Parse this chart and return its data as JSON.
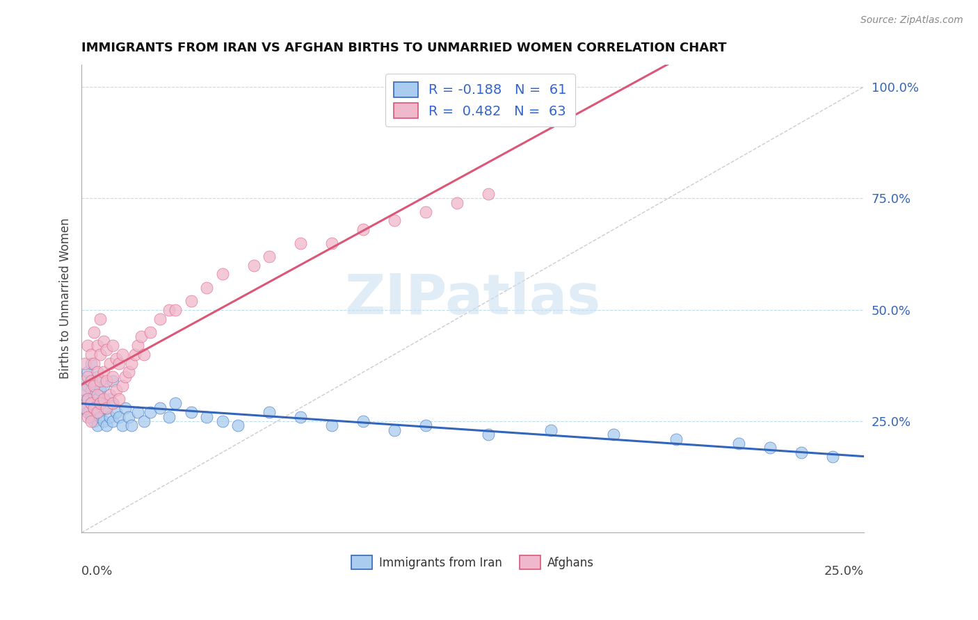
{
  "title": "IMMIGRANTS FROM IRAN VS AFGHAN BIRTHS TO UNMARRIED WOMEN CORRELATION CHART",
  "source": "Source: ZipAtlas.com",
  "legend_label1": "Immigrants from Iran",
  "legend_label2": "Afghans",
  "color_iran": "#aaccee",
  "color_afghan": "#f0b8cc",
  "color_iran_line": "#3366bb",
  "color_afghan_line": "#dd5577",
  "color_ref_line": "#cccccc",
  "color_grid": "#bbddee",
  "watermark_color": "#cce0f0",
  "ytick_values": [
    0.25,
    0.5,
    0.75,
    1.0
  ],
  "xmin": 0.0,
  "xmax": 0.25,
  "ymin": 0.0,
  "ymax": 1.05,
  "iran_x": [
    0.001,
    0.001,
    0.001,
    0.002,
    0.002,
    0.002,
    0.002,
    0.003,
    0.003,
    0.003,
    0.003,
    0.004,
    0.004,
    0.004,
    0.005,
    0.005,
    0.005,
    0.005,
    0.006,
    0.006,
    0.006,
    0.007,
    0.007,
    0.007,
    0.008,
    0.008,
    0.009,
    0.009,
    0.01,
    0.01,
    0.01,
    0.011,
    0.012,
    0.013,
    0.014,
    0.015,
    0.016,
    0.018,
    0.02,
    0.022,
    0.025,
    0.028,
    0.03,
    0.035,
    0.04,
    0.045,
    0.05,
    0.06,
    0.07,
    0.08,
    0.09,
    0.1,
    0.11,
    0.13,
    0.15,
    0.17,
    0.19,
    0.21,
    0.22,
    0.23,
    0.24
  ],
  "iran_y": [
    0.28,
    0.31,
    0.34,
    0.27,
    0.3,
    0.33,
    0.36,
    0.26,
    0.29,
    0.32,
    0.38,
    0.25,
    0.28,
    0.31,
    0.24,
    0.27,
    0.3,
    0.35,
    0.26,
    0.29,
    0.32,
    0.25,
    0.28,
    0.33,
    0.24,
    0.28,
    0.26,
    0.3,
    0.25,
    0.29,
    0.34,
    0.27,
    0.26,
    0.24,
    0.28,
    0.26,
    0.24,
    0.27,
    0.25,
    0.27,
    0.28,
    0.26,
    0.29,
    0.27,
    0.26,
    0.25,
    0.24,
    0.27,
    0.26,
    0.24,
    0.25,
    0.23,
    0.24,
    0.22,
    0.23,
    0.22,
    0.21,
    0.2,
    0.19,
    0.18,
    0.17
  ],
  "afghan_x": [
    0.001,
    0.001,
    0.001,
    0.002,
    0.002,
    0.002,
    0.002,
    0.003,
    0.003,
    0.003,
    0.003,
    0.004,
    0.004,
    0.004,
    0.004,
    0.005,
    0.005,
    0.005,
    0.005,
    0.006,
    0.006,
    0.006,
    0.006,
    0.007,
    0.007,
    0.007,
    0.008,
    0.008,
    0.008,
    0.009,
    0.009,
    0.01,
    0.01,
    0.01,
    0.011,
    0.011,
    0.012,
    0.012,
    0.013,
    0.013,
    0.014,
    0.015,
    0.016,
    0.017,
    0.018,
    0.019,
    0.02,
    0.022,
    0.025,
    0.028,
    0.03,
    0.035,
    0.04,
    0.045,
    0.055,
    0.06,
    0.07,
    0.08,
    0.09,
    0.1,
    0.11,
    0.12,
    0.13
  ],
  "afghan_y": [
    0.28,
    0.32,
    0.38,
    0.26,
    0.3,
    0.35,
    0.42,
    0.25,
    0.29,
    0.34,
    0.4,
    0.28,
    0.33,
    0.38,
    0.45,
    0.27,
    0.31,
    0.36,
    0.42,
    0.29,
    0.34,
    0.4,
    0.48,
    0.3,
    0.36,
    0.43,
    0.28,
    0.34,
    0.41,
    0.31,
    0.38,
    0.29,
    0.35,
    0.42,
    0.32,
    0.39,
    0.3,
    0.38,
    0.33,
    0.4,
    0.35,
    0.36,
    0.38,
    0.4,
    0.42,
    0.44,
    0.4,
    0.45,
    0.48,
    0.5,
    0.5,
    0.52,
    0.55,
    0.58,
    0.6,
    0.62,
    0.65,
    0.65,
    0.68,
    0.7,
    0.72,
    0.74,
    0.76
  ]
}
